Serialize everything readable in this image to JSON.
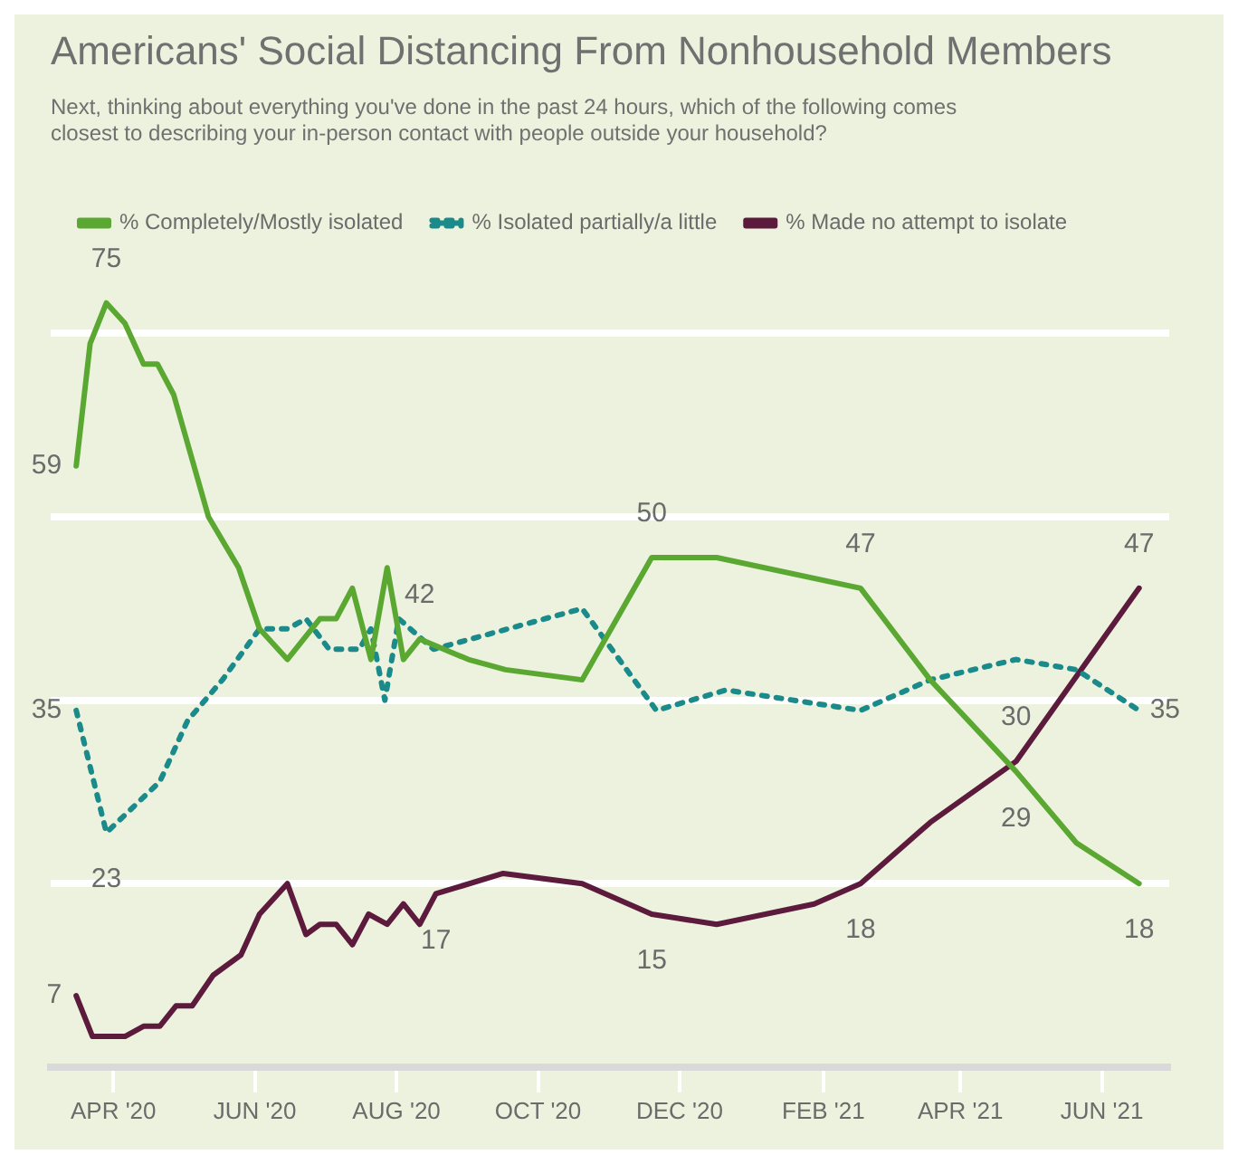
{
  "chart_data": {
    "type": "line",
    "title": "Americans' Social Distancing From Nonhousehold Members",
    "subtitle": "Next, thinking about everything you've done in the past 24 hours, which of the following comes closest to describing your in-person contact with people outside your household?",
    "xlim": [
      "2020-03-05",
      "2021-06-30"
    ],
    "xticks": [
      {
        "value": "2020-04-01",
        "label": "APR '20"
      },
      {
        "value": "2020-06-01",
        "label": "JUN '20"
      },
      {
        "value": "2020-08-01",
        "label": "AUG '20"
      },
      {
        "value": "2020-10-01",
        "label": "OCT '20"
      },
      {
        "value": "2020-12-01",
        "label": "DEC '20"
      },
      {
        "value": "2021-02-01",
        "label": "FEB '21"
      },
      {
        "value": "2021-04-01",
        "label": "APR '21"
      },
      {
        "value": "2021-06-01",
        "label": "JUN '21"
      }
    ],
    "yticks": [
      {
        "value": 18,
        "label": null
      },
      {
        "value": 36,
        "label": null
      },
      {
        "value": 54,
        "label": null
      },
      {
        "value": 72,
        "label": null
      }
    ],
    "tick_labels": "x",
    "grid": "y",
    "legend": "top left",
    "marker": "none",
    "series": [
      {
        "name": "% Completely/Mostly isolated",
        "color": "#5aa832",
        "line_style": "solid",
        "x": [
          "2020-03-16",
          "2020-03-22",
          "2020-03-29",
          "2020-04-06",
          "2020-04-14",
          "2020-04-20",
          "2020-04-27",
          "2020-05-12",
          "2020-05-25",
          "2020-06-03",
          "2020-06-15",
          "2020-06-29",
          "2020-07-06",
          "2020-07-13",
          "2020-07-21",
          "2020-07-28",
          "2020-08-04",
          "2020-08-11",
          "2020-09-01",
          "2020-09-17",
          "2020-10-20",
          "2020-11-19",
          "2020-12-17",
          "2021-02-17",
          "2021-03-19",
          "2021-04-25",
          "2021-05-21",
          "2021-06-17"
        ],
        "values": [
          59,
          71,
          75,
          73,
          69,
          69,
          66,
          54,
          49,
          43,
          40,
          44,
          44,
          47,
          40,
          49,
          40,
          42,
          40,
          39,
          38,
          50,
          50,
          47,
          38,
          29,
          22,
          18
        ],
        "value_labels": [
          "59",
          null,
          "75",
          null,
          null,
          null,
          null,
          null,
          null,
          null,
          null,
          null,
          null,
          null,
          null,
          null,
          null,
          "42",
          null,
          null,
          null,
          "50",
          null,
          "47",
          null,
          "29",
          null,
          "18"
        ]
      },
      {
        "name": "% Isolated partially/a little",
        "color": "#1a8a8a",
        "line_style": "dotted",
        "x": [
          "2020-03-16",
          "2020-03-29",
          "2020-04-21",
          "2020-05-03",
          "2020-05-18",
          "2020-06-03",
          "2020-06-15",
          "2020-06-23",
          "2020-07-03",
          "2020-07-16",
          "2020-07-21",
          "2020-07-27",
          "2020-08-02",
          "2020-08-17",
          "2020-10-20",
          "2020-11-21",
          "2020-12-21",
          "2021-02-17",
          "2021-03-19",
          "2021-04-25",
          "2021-05-21",
          "2021-06-17"
        ],
        "values": [
          35,
          23,
          28,
          34,
          38,
          43,
          43,
          44,
          41,
          41,
          43,
          36,
          44,
          41,
          45,
          35,
          37,
          35,
          38,
          40,
          39,
          35
        ],
        "value_labels": [
          "35",
          "23",
          null,
          null,
          null,
          null,
          null,
          null,
          null,
          null,
          null,
          null,
          null,
          null,
          null,
          null,
          null,
          null,
          null,
          null,
          null,
          "35"
        ]
      },
      {
        "name": "% Made no attempt to isolate",
        "color": "#5c1a3c",
        "line_style": "solid",
        "x": [
          "2020-03-16",
          "2020-03-23",
          "2020-04-06",
          "2020-04-14",
          "2020-04-21",
          "2020-04-28",
          "2020-05-05",
          "2020-05-14",
          "2020-05-26",
          "2020-06-03",
          "2020-06-15",
          "2020-06-23",
          "2020-06-29",
          "2020-07-06",
          "2020-07-13",
          "2020-07-20",
          "2020-07-28",
          "2020-08-04",
          "2020-08-11",
          "2020-08-18",
          "2020-09-16",
          "2020-10-20",
          "2020-11-19",
          "2020-12-17",
          "2021-01-28",
          "2021-02-17",
          "2021-03-19",
          "2021-04-25",
          "2021-06-17"
        ],
        "values": [
          7,
          3,
          3,
          4,
          4,
          6,
          6,
          9,
          11,
          15,
          18,
          13,
          14,
          14,
          12,
          15,
          14,
          16,
          14,
          17,
          19,
          18,
          15,
          14,
          16,
          18,
          24,
          30,
          47
        ],
        "value_labels": [
          "7",
          null,
          null,
          null,
          null,
          null,
          null,
          null,
          null,
          null,
          null,
          null,
          null,
          null,
          null,
          null,
          null,
          null,
          null,
          "17",
          null,
          null,
          "15",
          null,
          null,
          "18",
          null,
          "30",
          "47"
        ]
      }
    ]
  }
}
